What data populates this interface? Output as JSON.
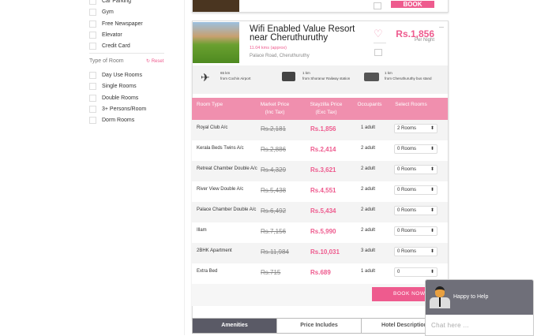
{
  "filters": {
    "amenities": [
      "Car Parking",
      "Gym",
      "Free Newspaper",
      "Elevator",
      "Credit Card"
    ],
    "room_type_title": "Type of Room",
    "reset_label": "Reset",
    "room_types": [
      "Day Use Rooms",
      "Single Rooms",
      "Double Rooms",
      "3+ Persons/Room",
      "Dorm Rooms"
    ]
  },
  "prev_card": {
    "book_label": "BOOK"
  },
  "hotel": {
    "name": "Wifi Enabled Value Resort near Cheruthuruthy",
    "distance": "11.04 kms (approx)",
    "address": "Palace Road, Cheruthuruthy",
    "price": "Rs.1,856",
    "price_unit": "Per Night",
    "transport": [
      {
        "dist": "65 km",
        "from": "from Cochin Airport",
        "icon": "plane-icon"
      },
      {
        "dist": "1 km",
        "from": "from Shoranur Railway station",
        "icon": "train-icon"
      },
      {
        "dist": "1 km",
        "from": "from Cheruthuruthy bus stand",
        "icon": "bus-icon"
      }
    ]
  },
  "table": {
    "headers": [
      "Room Type",
      "Market Price\n(Inc Tax)",
      "Stayzilla Price\n(Exc Tax)",
      "Occupants",
      "Select Rooms"
    ],
    "rows": [
      {
        "type": "Royal Club A/c",
        "market": "Rs.2,181",
        "price": "Rs.1,856",
        "occ": "1 adult",
        "sel": "2 Rooms"
      },
      {
        "type": "Kerala Beds Twins A/c",
        "market": "Rs.2,886",
        "price": "Rs.2,414",
        "occ": "2 adult",
        "sel": "0 Rooms"
      },
      {
        "type": "Retreat Chamber Double A/c",
        "market": "Rs.4,329",
        "price": "Rs.3,621",
        "occ": "2 adult",
        "sel": "0 Rooms"
      },
      {
        "type": "River View Double A/c",
        "market": "Rs.5,438",
        "price": "Rs.4,551",
        "occ": "2 adult",
        "sel": "0 Rooms"
      },
      {
        "type": "Palace Chamber Double A/c",
        "market": "Rs.6,492",
        "price": "Rs.5,434",
        "occ": "2 adult",
        "sel": "0 Rooms"
      },
      {
        "type": "Illam",
        "market": "Rs.7,156",
        "price": "Rs.5,990",
        "occ": "2 adult",
        "sel": "0 Rooms"
      },
      {
        "type": "2BHK Apartment",
        "market": "Rs.11,984",
        "price": "Rs.10,031",
        "occ": "3 adult",
        "sel": "0 Rooms"
      },
      {
        "type": "Extra Bed",
        "market": "Rs.715",
        "price": "Rs.689",
        "occ": "1 adult",
        "sel": "0"
      }
    ]
  },
  "book_now": "BOOK NOW",
  "tabs": [
    "Amenities",
    "Price Includes",
    "Hotel Description"
  ],
  "chat": {
    "title": "Happy to Help",
    "placeholder": "Chat here ..."
  },
  "colors": {
    "accent": "#ee5b8e",
    "header": "#f08fae",
    "dark": "#5a5a66"
  }
}
